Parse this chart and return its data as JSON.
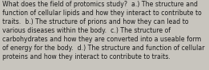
{
  "lines": [
    "What does the field of protomics study?  a.) The structure and",
    "function of cellular lipids and how they interact to contribute to",
    "traits.  b.) The structure of prions and how they can lead to",
    "various diseases within the body.  c.) The structure of",
    "carbohydrates and how they are converted into a useable form",
    "of energy for the body.  d.) The structure and function of cellular",
    "proteins and how they interact to contribute to traits."
  ],
  "background_color": "#c8c5be",
  "text_color": "#1a1a1a",
  "font_size": 5.6,
  "fig_width": 2.61,
  "fig_height": 0.88,
  "dpi": 100
}
